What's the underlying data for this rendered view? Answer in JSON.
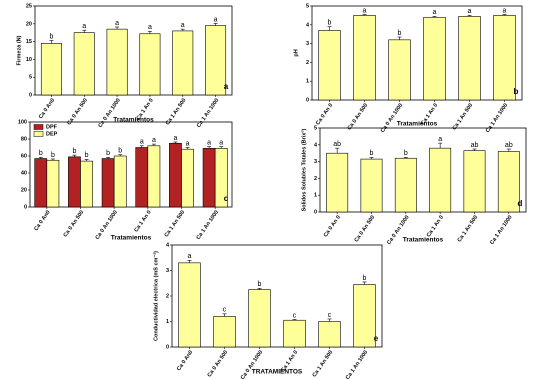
{
  "chart_data": [
    {
      "type": "bar",
      "ylabel": "Firmeza (N)",
      "xlabel": "Tratamientos",
      "panel_label": "a",
      "categories": [
        "Ca 0 An0",
        "Ca 0 An 500",
        "Ca 0 An 1000",
        "Ca 1 An 0",
        "Ca 1 An 500",
        "Ca 1 An 1000"
      ],
      "series": [
        {
          "color": "#ffff99",
          "values": [
            14.5,
            17.5,
            18.5,
            17.2,
            18,
            19.5
          ],
          "errors": [
            0.8,
            0.7,
            0.6,
            0.7,
            0.5,
            0.6
          ],
          "annotations": [
            "b",
            "a",
            "a",
            "a",
            "a",
            "a"
          ]
        }
      ],
      "ylim": [
        0,
        25
      ],
      "yticks": [
        0,
        5,
        10,
        15,
        20,
        25
      ]
    },
    {
      "type": "bar",
      "ylabel": "pH",
      "xlabel": "Tratamientos",
      "panel_label": "b",
      "categories": [
        "Ca 0 An 0",
        "Ca 0 An 500",
        "Ca 0 An 1000",
        "Ca 1 An 0",
        "Ca 1 An 500",
        "Ca 1 An 1000"
      ],
      "series": [
        {
          "color": "#ffff99",
          "values": [
            3.7,
            4.5,
            3.2,
            4.4,
            4.45,
            4.5
          ],
          "errors": [
            0.2,
            0.05,
            0.15,
            0.05,
            0.05,
            0.05
          ],
          "annotations": [
            "b",
            "a",
            "b",
            "a",
            "a",
            "a"
          ]
        }
      ],
      "ylim": [
        0,
        5
      ],
      "yticks": [
        0,
        1,
        2,
        3,
        4,
        5
      ]
    },
    {
      "type": "bar",
      "xlabel": "Tratamientos",
      "panel_label": "c",
      "categories": [
        "Ca 0 An0",
        "Ca 0 An 500",
        "Ca 0 An 1000",
        "Ca 1 An 0",
        "Ca 1 An 500",
        "Ca 1 An 1000"
      ],
      "series": [
        {
          "name": "DPF",
          "color": "#b22222",
          "values": [
            57,
            59,
            57,
            70,
            75,
            69
          ],
          "errors": [
            1.5,
            2,
            1.5,
            2,
            1.5,
            2
          ],
          "annotations": [
            "b",
            "b",
            "b",
            "a",
            "a",
            "a"
          ]
        },
        {
          "name": "DEP",
          "color": "#ffff99",
          "values": [
            55,
            54,
            60,
            72,
            68,
            69
          ],
          "errors": [
            1.5,
            2,
            1.5,
            2,
            2,
            2
          ],
          "annotations": [
            "b",
            "b",
            "b",
            "a",
            "a",
            "a"
          ]
        }
      ],
      "ylim": [
        0,
        100
      ],
      "yticks": [
        0,
        20,
        40,
        60,
        80,
        100
      ],
      "legend": "top-left"
    },
    {
      "type": "bar",
      "ylabel": "Solidos Solubles Totales (Brix°)",
      "xlabel": "Tratamientos",
      "panel_label": "d",
      "categories": [
        "Ca 0 An 0",
        "Ca 0 An 500",
        "Ca 0 An 1000",
        "Ca 1 An 0",
        "Ca 1 An 500",
        "Ca 1 An 1000"
      ],
      "series": [
        {
          "color": "#ffff99",
          "values": [
            3.5,
            3.15,
            3.2,
            3.8,
            3.65,
            3.6
          ],
          "errors": [
            0.3,
            0.1,
            0.05,
            0.3,
            0.1,
            0.15
          ],
          "annotations": [
            "ab",
            "b",
            "b",
            "a",
            "ab",
            "ab"
          ]
        }
      ],
      "ylim": [
        0,
        5
      ],
      "yticks": [
        0,
        1,
        2,
        3,
        4,
        5
      ]
    },
    {
      "type": "bar",
      "ylabel": "Conductividad electrica (mS cm⁻²)",
      "xlabel": "TRATAMIENTOS",
      "panel_label": "e",
      "categories": [
        "Ca 0 An0",
        "Ca 0 An 500",
        "Ca 0 An 1000",
        "Ca 1 An 0",
        "Ca 1 An 500",
        "Ca 1 An 1000"
      ],
      "series": [
        {
          "color": "#ffff99",
          "values": [
            3.3,
            1.2,
            2.25,
            1.05,
            1.0,
            2.45
          ],
          "errors": [
            0.1,
            0.1,
            0.05,
            0.03,
            0.1,
            0.1
          ],
          "annotations": [
            "a",
            "c",
            "b",
            "c",
            "c",
            "b"
          ]
        }
      ],
      "ylim": [
        0,
        4
      ],
      "yticks": [
        0,
        1,
        2,
        3,
        4
      ]
    }
  ]
}
